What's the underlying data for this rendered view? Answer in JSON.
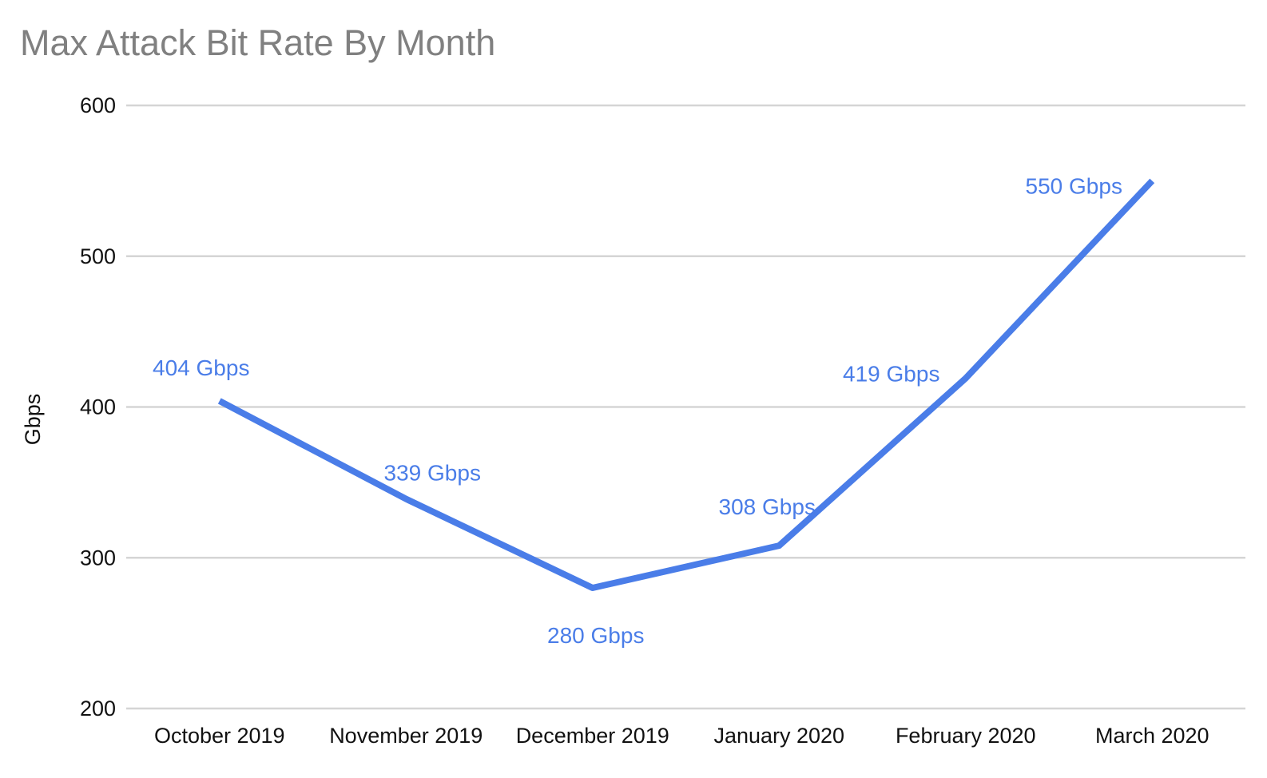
{
  "chart_data": {
    "type": "line",
    "title": "Max Attack Bit Rate By Month",
    "ylabel": "Gbps",
    "xlabel": "",
    "categories": [
      "October 2019",
      "November 2019",
      "December 2019",
      "January 2020",
      "February 2020",
      "March 2020"
    ],
    "series": [
      {
        "values": [
          404,
          339,
          280,
          308,
          419,
          550
        ]
      }
    ],
    "data_labels": [
      "404 Gbps",
      "339 Gbps",
      "280 Gbps",
      "308 Gbps",
      "419 Gbps",
      "550 Gbps"
    ],
    "y_ticks": [
      200,
      300,
      400,
      500,
      600
    ],
    "ylim": [
      200,
      600
    ],
    "grid": true,
    "legend": "none",
    "colors": {
      "series_line": "#4a7de8",
      "data_label_text": "#4a7de8",
      "title_text": "#808080",
      "axis_text": "#111111",
      "gridline": "#d5d5d5",
      "background": "#ffffff"
    }
  }
}
